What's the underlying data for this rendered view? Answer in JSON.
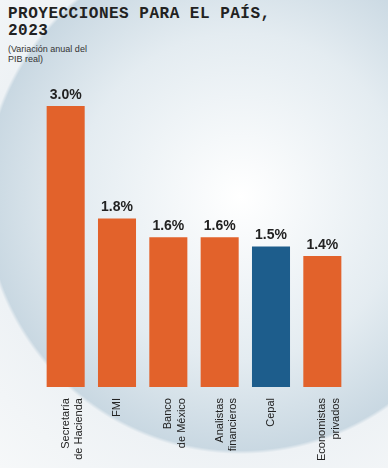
{
  "chart_data": {
    "type": "bar",
    "title": "PROYECCIONES PARA EL PAÍS, 2023",
    "subtitle": "(Variación anual del PIB real)",
    "categories": [
      "Secretaría\nde Hacienda",
      "FMI",
      "Banco\nde México",
      "Analistas\nfinancieros",
      "Cepal",
      "Economistas\nprivados"
    ],
    "values": [
      3.0,
      1.8,
      1.6,
      1.6,
      1.5,
      1.4
    ],
    "value_labels": [
      "3.0%",
      "1.8%",
      "1.6%",
      "1.6%",
      "1.5%",
      "1.4%"
    ],
    "colors": [
      "#e2622b",
      "#e2622b",
      "#e2622b",
      "#e2622b",
      "#1d5d8c",
      "#e2622b"
    ],
    "data_labels": true,
    "grid": false,
    "tick_labels": "x"
  }
}
